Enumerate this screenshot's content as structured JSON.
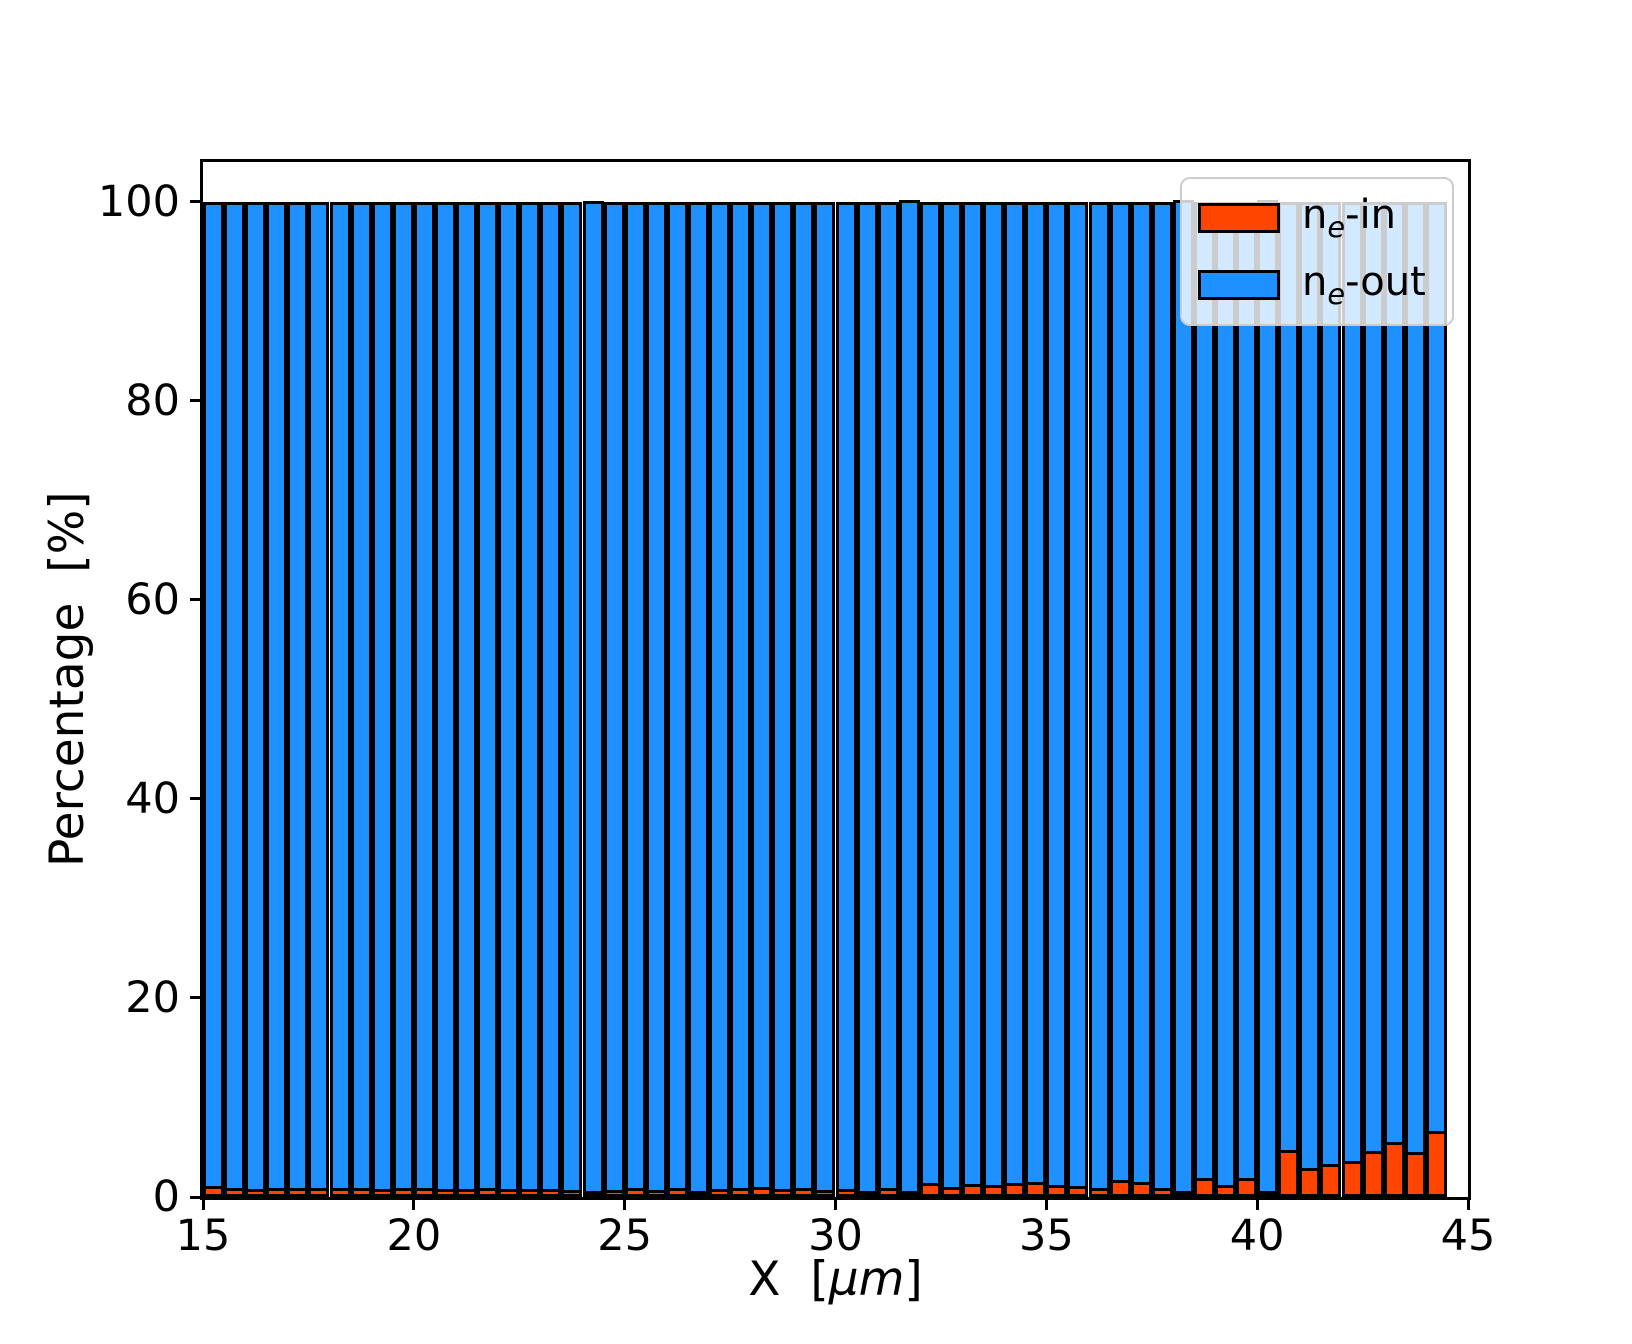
{
  "figure": {
    "background": "#ffffff"
  },
  "axes": {
    "ylabel": "Percentage  [%]",
    "xlabel_pre": "X  [",
    "xlabel_math": "µm",
    "xlabel_post": "]",
    "spine_color": "#000000"
  },
  "legend": {
    "position": "upper right",
    "items": [
      {
        "pre": "n",
        "sub": "e",
        "post": "-in",
        "color": "#FF4500"
      },
      {
        "pre": "n",
        "sub": "e",
        "post": "-out",
        "color": "#1E90FF"
      }
    ]
  },
  "chart_data": {
    "type": "bar",
    "stacked": true,
    "title": "",
    "xlabel": "X [µm]",
    "ylabel": "Percentage [%]",
    "grid": false,
    "legend_position": "upper right",
    "bar_width_um": 0.5,
    "bar_edge_color": "#000000",
    "xlim": [
      15,
      45
    ],
    "ylim": [
      0,
      104
    ],
    "xticks": [
      15,
      20,
      25,
      30,
      35,
      40,
      45
    ],
    "yticks": [
      0,
      20,
      40,
      60,
      80,
      100
    ],
    "x": [
      15.25,
      15.75,
      16.25,
      16.75,
      17.25,
      17.75,
      18.25,
      18.75,
      19.25,
      19.75,
      20.25,
      20.75,
      21.25,
      21.75,
      22.25,
      22.75,
      23.25,
      23.75,
      24.25,
      24.75,
      25.25,
      25.75,
      26.25,
      26.75,
      27.25,
      27.75,
      28.25,
      28.75,
      29.25,
      29.75,
      30.25,
      30.75,
      31.25,
      31.75,
      32.25,
      32.75,
      33.25,
      33.75,
      34.25,
      34.75,
      35.25,
      35.75,
      36.25,
      36.75,
      37.25,
      37.75,
      38.25,
      38.75,
      39.25,
      39.75,
      40.25,
      40.75,
      41.25,
      41.75,
      42.25,
      42.75,
      43.25,
      43.75,
      44.25
    ],
    "series": [
      {
        "name": "n_e-in",
        "color": "#FF4500",
        "values": [
          1.1,
          0.9,
          0.8,
          0.9,
          0.9,
          0.9,
          0.9,
          0.9,
          0.8,
          0.9,
          0.9,
          0.8,
          0.8,
          0.9,
          0.8,
          0.8,
          0.8,
          0.7,
          0.5,
          0.7,
          0.9,
          0.7,
          0.9,
          0.6,
          0.8,
          0.9,
          1.0,
          0.8,
          0.9,
          0.7,
          0.8,
          0.6,
          0.9,
          0.4,
          1.4,
          1.0,
          1.3,
          1.2,
          1.4,
          1.5,
          1.2,
          1.1,
          0.9,
          1.7,
          1.5,
          0.9,
          0.4,
          1.9,
          1.2,
          1.9,
          0.4,
          4.7,
          2.9,
          3.3,
          3.6,
          4.6,
          5.5,
          4.5,
          6.6
        ]
      },
      {
        "name": "n_e-out",
        "color": "#1E90FF",
        "values": [
          98.9,
          99.1,
          99.2,
          99.1,
          99.1,
          99.1,
          99.1,
          99.1,
          99.2,
          99.1,
          99.1,
          99.2,
          99.2,
          99.1,
          99.2,
          99.2,
          99.2,
          99.3,
          99.5,
          99.3,
          99.1,
          99.3,
          99.1,
          99.4,
          99.2,
          99.1,
          99.0,
          99.2,
          99.1,
          99.3,
          99.2,
          99.4,
          99.1,
          99.6,
          98.6,
          99.0,
          98.7,
          98.8,
          98.6,
          98.5,
          98.8,
          98.9,
          99.1,
          98.3,
          98.5,
          99.1,
          99.6,
          98.1,
          98.8,
          98.1,
          99.6,
          95.3,
          97.1,
          96.7,
          96.4,
          95.4,
          94.5,
          95.5,
          93.4
        ]
      }
    ]
  }
}
